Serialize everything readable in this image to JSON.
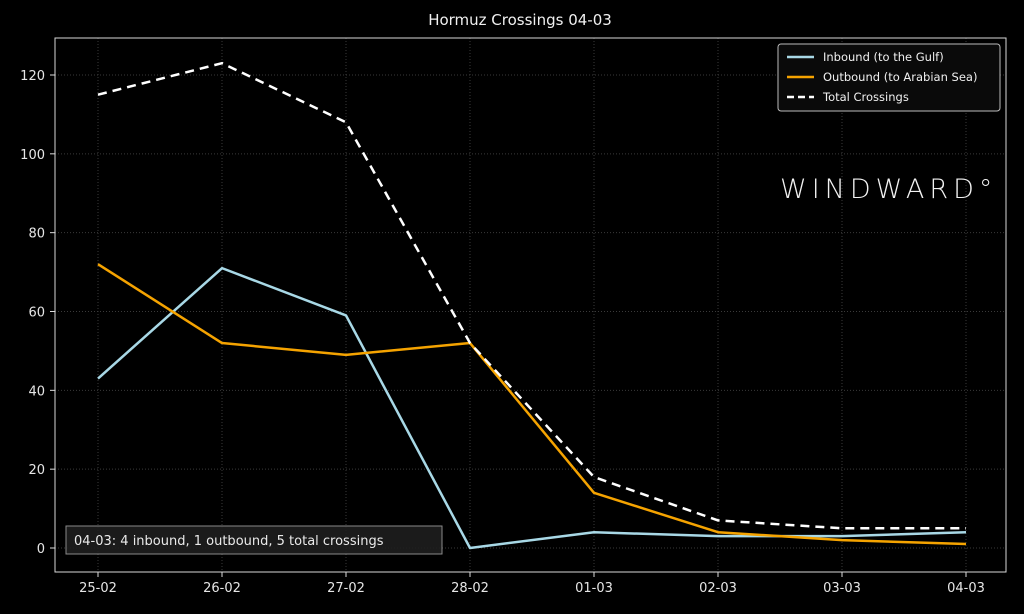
{
  "chart_data": {
    "type": "line",
    "title": "Hormuz Crossings 04-03",
    "xlabel": "",
    "ylabel": "",
    "categories": [
      "25-02",
      "26-02",
      "27-02",
      "28-02",
      "01-03",
      "02-03",
      "03-03",
      "04-03"
    ],
    "ylim": [
      -6,
      129
    ],
    "yticks": [
      0,
      20,
      40,
      60,
      80,
      100,
      120
    ],
    "grid": true,
    "legend_position": "top-right",
    "series": [
      {
        "name": "Inbound (to the Gulf)",
        "color": "#a8d8e6",
        "dash": false,
        "values": [
          43,
          71,
          59,
          0,
          4,
          3,
          3,
          4
        ]
      },
      {
        "name": "Outbound (to Arabian Sea)",
        "color": "#f5a300",
        "dash": false,
        "values": [
          72,
          52,
          49,
          52,
          14,
          4,
          2,
          1
        ]
      },
      {
        "name": "Total Crossings",
        "color": "#ffffff",
        "dash": true,
        "values": [
          115,
          123,
          108,
          52,
          18,
          7,
          5,
          5
        ]
      }
    ],
    "annotation": "04-03: 4 inbound, 1 outbound, 5 total crossings",
    "watermark": "WINDWARD°"
  }
}
